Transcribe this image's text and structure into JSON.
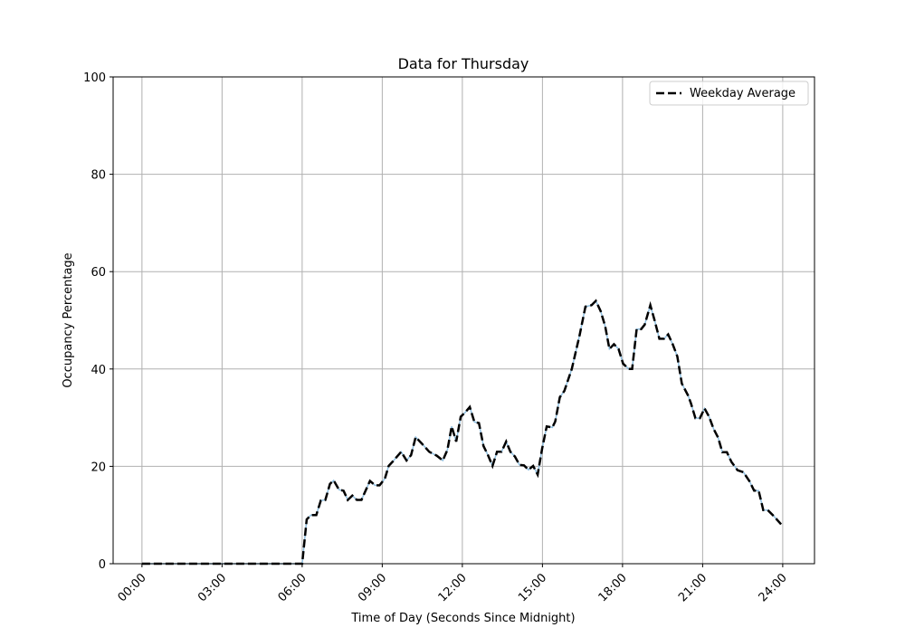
{
  "chart_data": {
    "type": "line",
    "title": "Data for Thursday",
    "xlabel": "Time of Day (Seconds Since Midnight)",
    "ylabel": "Occupancy Percentage",
    "xlim_hours": [
      -1.08,
      25.19
    ],
    "ylim": [
      0,
      100
    ],
    "grid": true,
    "legend_placement": "top-right",
    "x_ticks": [
      {
        "hour": 0,
        "label": "00:00"
      },
      {
        "hour": 3,
        "label": "03:00"
      },
      {
        "hour": 6,
        "label": "06:00"
      },
      {
        "hour": 9,
        "label": "09:00"
      },
      {
        "hour": 12,
        "label": "12:00"
      },
      {
        "hour": 15,
        "label": "15:00"
      },
      {
        "hour": 18,
        "label": "18:00"
      },
      {
        "hour": 21,
        "label": "21:00"
      },
      {
        "hour": 24,
        "label": "24:00"
      }
    ],
    "y_ticks": [
      {
        "value": 0,
        "label": "0"
      },
      {
        "value": 20,
        "label": "20"
      },
      {
        "value": 40,
        "label": "40"
      },
      {
        "value": 60,
        "label": "60"
      },
      {
        "value": 80,
        "label": "80"
      },
      {
        "value": 100,
        "label": "100"
      }
    ],
    "series": [
      {
        "name": "Thursday",
        "color": "#8fbfe0",
        "style": "solid",
        "in_legend": false
      },
      {
        "name": "Weekday Average",
        "color": "#000000",
        "style": "dashed",
        "in_legend": true
      }
    ],
    "x_hours": [
      0,
      6.0,
      6.17,
      6.33,
      6.53,
      6.7,
      6.87,
      7.04,
      7.18,
      7.38,
      7.55,
      7.71,
      7.88,
      8.05,
      8.22,
      8.54,
      8.73,
      8.9,
      9.1,
      9.24,
      9.41,
      9.71,
      9.91,
      10.08,
      10.25,
      10.48,
      10.76,
      11.04,
      11.27,
      11.44,
      11.6,
      11.77,
      11.94,
      12.11,
      12.28,
      12.45,
      12.62,
      12.79,
      12.96,
      13.13,
      13.3,
      13.47,
      13.64,
      13.8,
      13.97,
      14.14,
      14.31,
      14.48,
      14.65,
      14.82,
      14.99,
      15.16,
      15.37,
      15.48,
      15.65,
      15.82,
      16.1,
      16.39,
      16.61,
      16.84,
      17.0,
      17.18,
      17.35,
      17.51,
      17.68,
      17.85,
      18.02,
      18.23,
      18.36,
      18.53,
      18.7,
      18.83,
      19.04,
      19.2,
      19.38,
      19.55,
      19.71,
      19.88,
      20.05,
      20.22,
      20.45,
      20.56,
      20.73,
      20.9,
      21.07,
      21.24,
      21.41,
      21.58,
      21.74,
      21.91,
      22.08,
      22.31,
      22.53,
      22.76,
      22.93,
      23.1,
      23.27,
      23.44,
      23.66,
      23.94
    ],
    "values": [
      0,
      0,
      9.1,
      10,
      10,
      13,
      13.1,
      16.4,
      17.1,
      15.2,
      15,
      13.1,
      14,
      13.1,
      13.1,
      17,
      16.1,
      16.1,
      17.5,
      20.1,
      21.1,
      23,
      21.2,
      22.3,
      26,
      24.7,
      23,
      22.2,
      21.2,
      23.4,
      28.2,
      25.1,
      30.2,
      31.1,
      32.2,
      29.1,
      28.9,
      24.2,
      22.3,
      20.1,
      23,
      23,
      25.1,
      23,
      22,
      20.3,
      20.2,
      19.3,
      20.1,
      18.3,
      23.7,
      28.2,
      28,
      29.2,
      34.2,
      35.5,
      40,
      46.9,
      52.8,
      53.1,
      54,
      51.9,
      48.8,
      44.1,
      45.1,
      44.1,
      41.1,
      40,
      40,
      48.2,
      48.2,
      49.1,
      53.1,
      50,
      46.2,
      46.2,
      47.1,
      45.1,
      42.6,
      37,
      34.6,
      33,
      29.9,
      29.9,
      31.9,
      30.2,
      27.7,
      25.9,
      22.9,
      22.9,
      20.9,
      19.2,
      18.8,
      16.9,
      15,
      15,
      11,
      11,
      9.8,
      8.1
    ]
  }
}
